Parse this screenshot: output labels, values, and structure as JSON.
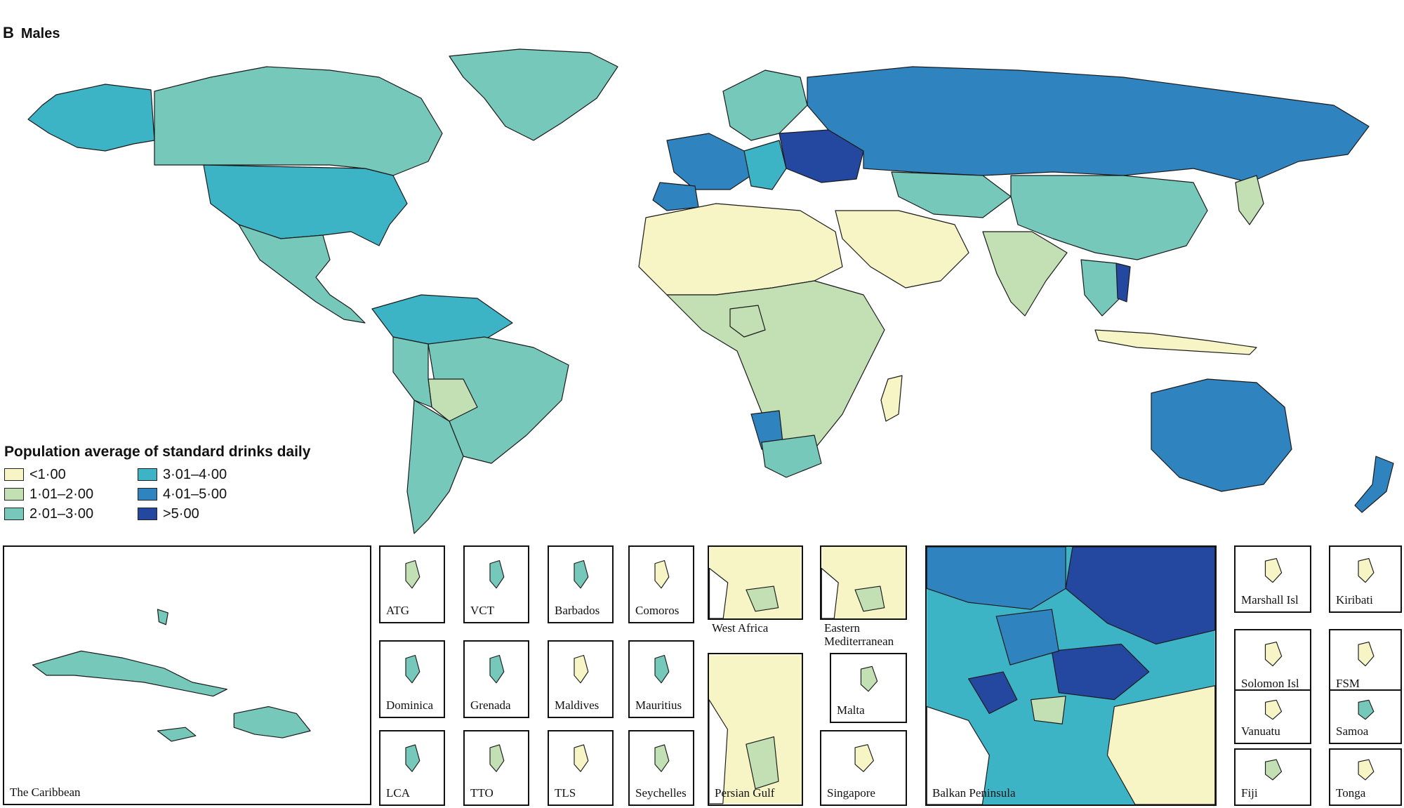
{
  "panel": {
    "letter": "B",
    "title": "Males"
  },
  "legend": {
    "title": "Population average of standard drinks daily",
    "items": [
      {
        "label": "<1·00",
        "color": "#f7f5c6"
      },
      {
        "label": "1·01–2·00",
        "color": "#c2e0b4"
      },
      {
        "label": "2·01–3·00",
        "color": "#76c9ba"
      },
      {
        "label": "3·01–4·00",
        "color": "#3db3c6"
      },
      {
        "label": "4·01–5·00",
        "color": "#2f84c0"
      },
      {
        "label": ">5·00",
        "color": "#2447a0"
      }
    ]
  },
  "insets": [
    {
      "label": "The Caribbean",
      "level": 2
    },
    {
      "label": "ATG",
      "level": 1
    },
    {
      "label": "VCT",
      "level": 2
    },
    {
      "label": "Barbados",
      "level": 2
    },
    {
      "label": "Comoros",
      "level": 0
    },
    {
      "label": "Dominica",
      "level": 2
    },
    {
      "label": "Grenada",
      "level": 2
    },
    {
      "label": "Maldives",
      "level": 0
    },
    {
      "label": "Mauritius",
      "level": 2
    },
    {
      "label": "LCA",
      "level": 2
    },
    {
      "label": "TTO",
      "level": 1
    },
    {
      "label": "TLS",
      "level": 0
    },
    {
      "label": "Seychelles",
      "level": 1
    },
    {
      "label": "West Africa",
      "level": 0
    },
    {
      "label": "Eastern Mediterranean",
      "level": 0
    },
    {
      "label": "Malta",
      "level": 1
    },
    {
      "label": "Persian Gulf",
      "level": 0
    },
    {
      "label": "Singapore",
      "level": 0
    },
    {
      "label": "Balkan Peninsula",
      "level": 4
    },
    {
      "label": "Marshall Isl",
      "level": 0
    },
    {
      "label": "Kiribati",
      "level": 0
    },
    {
      "label": "Solomon Isl",
      "level": 0
    },
    {
      "label": "FSM",
      "level": 0
    },
    {
      "label": "Vanuatu",
      "level": 0
    },
    {
      "label": "Samoa",
      "level": 2
    },
    {
      "label": "Fiji",
      "level": 1
    },
    {
      "label": "Tonga",
      "level": 0
    }
  ]
}
